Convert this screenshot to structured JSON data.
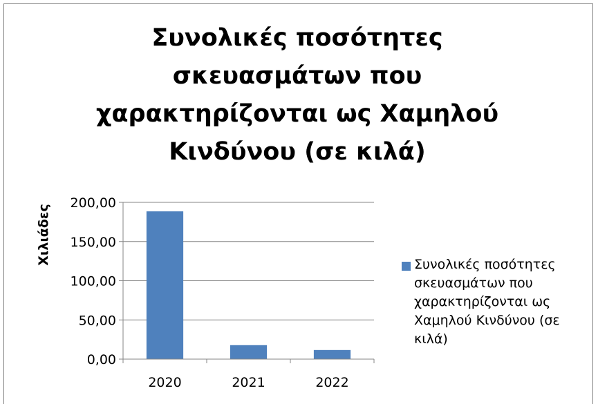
{
  "chart_data": {
    "type": "bar",
    "title": "Συνολικές ποσότητες σκευασμάτων που χαρακτηρίζονται ως Χαμηλού Κινδύνου (σε κιλά)",
    "xlabel": "",
    "ylabel": "Χιλιάδες",
    "categories": [
      "2020",
      "2021",
      "2022"
    ],
    "series": [
      {
        "name": "Συνολικές ποσότητες σκευασμάτων που χαρακτηρίζονται ως Χαμηλού Κινδύνου (σε κιλά)",
        "values": [
          188.5,
          17.8,
          11.6
        ]
      }
    ],
    "ylim": [
      0,
      200
    ],
    "yticks": [
      0,
      50,
      100,
      150,
      200
    ],
    "ytick_labels": [
      "0,00",
      "50,00",
      "100,00",
      "150,00",
      "200,00"
    ],
    "grid": true,
    "legend_position": "right",
    "bar_color": "#4f81bd"
  }
}
